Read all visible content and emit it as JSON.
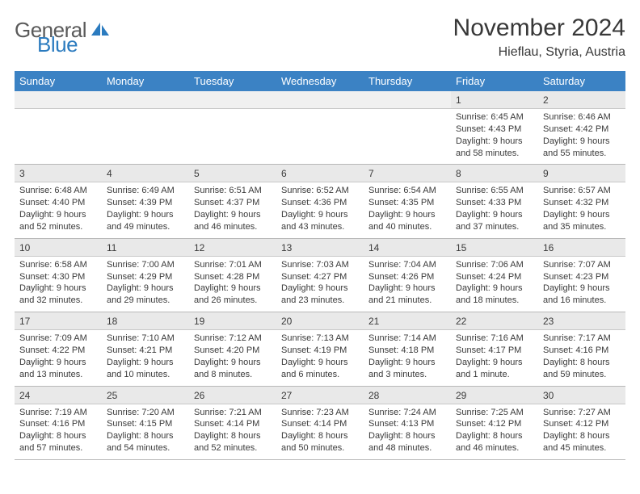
{
  "brand": {
    "word1": "General",
    "word2": "Blue"
  },
  "title": "November 2024",
  "location": "Hieflau, Styria, Austria",
  "colors": {
    "header_bg": "#3b82c4",
    "header_text": "#ffffff",
    "daynum_bg": "#e9e9e9",
    "blank_bg": "#f0f0f0",
    "border": "#b8b8b8",
    "text": "#3a3a3a",
    "brand_gray": "#5a5a5a",
    "brand_blue": "#2b7bbf"
  },
  "dow": [
    "Sunday",
    "Monday",
    "Tuesday",
    "Wednesday",
    "Thursday",
    "Friday",
    "Saturday"
  ],
  "weeks": [
    {
      "nums": [
        "",
        "",
        "",
        "",
        "",
        "1",
        "2"
      ],
      "cells": [
        null,
        null,
        null,
        null,
        null,
        {
          "sunrise": "6:45 AM",
          "sunset": "4:43 PM",
          "daylight": "9 hours and 58 minutes."
        },
        {
          "sunrise": "6:46 AM",
          "sunset": "4:42 PM",
          "daylight": "9 hours and 55 minutes."
        }
      ]
    },
    {
      "nums": [
        "3",
        "4",
        "5",
        "6",
        "7",
        "8",
        "9"
      ],
      "cells": [
        {
          "sunrise": "6:48 AM",
          "sunset": "4:40 PM",
          "daylight": "9 hours and 52 minutes."
        },
        {
          "sunrise": "6:49 AM",
          "sunset": "4:39 PM",
          "daylight": "9 hours and 49 minutes."
        },
        {
          "sunrise": "6:51 AM",
          "sunset": "4:37 PM",
          "daylight": "9 hours and 46 minutes."
        },
        {
          "sunrise": "6:52 AM",
          "sunset": "4:36 PM",
          "daylight": "9 hours and 43 minutes."
        },
        {
          "sunrise": "6:54 AM",
          "sunset": "4:35 PM",
          "daylight": "9 hours and 40 minutes."
        },
        {
          "sunrise": "6:55 AM",
          "sunset": "4:33 PM",
          "daylight": "9 hours and 37 minutes."
        },
        {
          "sunrise": "6:57 AM",
          "sunset": "4:32 PM",
          "daylight": "9 hours and 35 minutes."
        }
      ]
    },
    {
      "nums": [
        "10",
        "11",
        "12",
        "13",
        "14",
        "15",
        "16"
      ],
      "cells": [
        {
          "sunrise": "6:58 AM",
          "sunset": "4:30 PM",
          "daylight": "9 hours and 32 minutes."
        },
        {
          "sunrise": "7:00 AM",
          "sunset": "4:29 PM",
          "daylight": "9 hours and 29 minutes."
        },
        {
          "sunrise": "7:01 AM",
          "sunset": "4:28 PM",
          "daylight": "9 hours and 26 minutes."
        },
        {
          "sunrise": "7:03 AM",
          "sunset": "4:27 PM",
          "daylight": "9 hours and 23 minutes."
        },
        {
          "sunrise": "7:04 AM",
          "sunset": "4:26 PM",
          "daylight": "9 hours and 21 minutes."
        },
        {
          "sunrise": "7:06 AM",
          "sunset": "4:24 PM",
          "daylight": "9 hours and 18 minutes."
        },
        {
          "sunrise": "7:07 AM",
          "sunset": "4:23 PM",
          "daylight": "9 hours and 16 minutes."
        }
      ]
    },
    {
      "nums": [
        "17",
        "18",
        "19",
        "20",
        "21",
        "22",
        "23"
      ],
      "cells": [
        {
          "sunrise": "7:09 AM",
          "sunset": "4:22 PM",
          "daylight": "9 hours and 13 minutes."
        },
        {
          "sunrise": "7:10 AM",
          "sunset": "4:21 PM",
          "daylight": "9 hours and 10 minutes."
        },
        {
          "sunrise": "7:12 AM",
          "sunset": "4:20 PM",
          "daylight": "9 hours and 8 minutes."
        },
        {
          "sunrise": "7:13 AM",
          "sunset": "4:19 PM",
          "daylight": "9 hours and 6 minutes."
        },
        {
          "sunrise": "7:14 AM",
          "sunset": "4:18 PM",
          "daylight": "9 hours and 3 minutes."
        },
        {
          "sunrise": "7:16 AM",
          "sunset": "4:17 PM",
          "daylight": "9 hours and 1 minute."
        },
        {
          "sunrise": "7:17 AM",
          "sunset": "4:16 PM",
          "daylight": "8 hours and 59 minutes."
        }
      ]
    },
    {
      "nums": [
        "24",
        "25",
        "26",
        "27",
        "28",
        "29",
        "30"
      ],
      "cells": [
        {
          "sunrise": "7:19 AM",
          "sunset": "4:16 PM",
          "daylight": "8 hours and 57 minutes."
        },
        {
          "sunrise": "7:20 AM",
          "sunset": "4:15 PM",
          "daylight": "8 hours and 54 minutes."
        },
        {
          "sunrise": "7:21 AM",
          "sunset": "4:14 PM",
          "daylight": "8 hours and 52 minutes."
        },
        {
          "sunrise": "7:23 AM",
          "sunset": "4:14 PM",
          "daylight": "8 hours and 50 minutes."
        },
        {
          "sunrise": "7:24 AM",
          "sunset": "4:13 PM",
          "daylight": "8 hours and 48 minutes."
        },
        {
          "sunrise": "7:25 AM",
          "sunset": "4:12 PM",
          "daylight": "8 hours and 46 minutes."
        },
        {
          "sunrise": "7:27 AM",
          "sunset": "4:12 PM",
          "daylight": "8 hours and 45 minutes."
        }
      ]
    }
  ],
  "labels": {
    "sunrise": "Sunrise: ",
    "sunset": "Sunset: ",
    "daylight": "Daylight: "
  }
}
